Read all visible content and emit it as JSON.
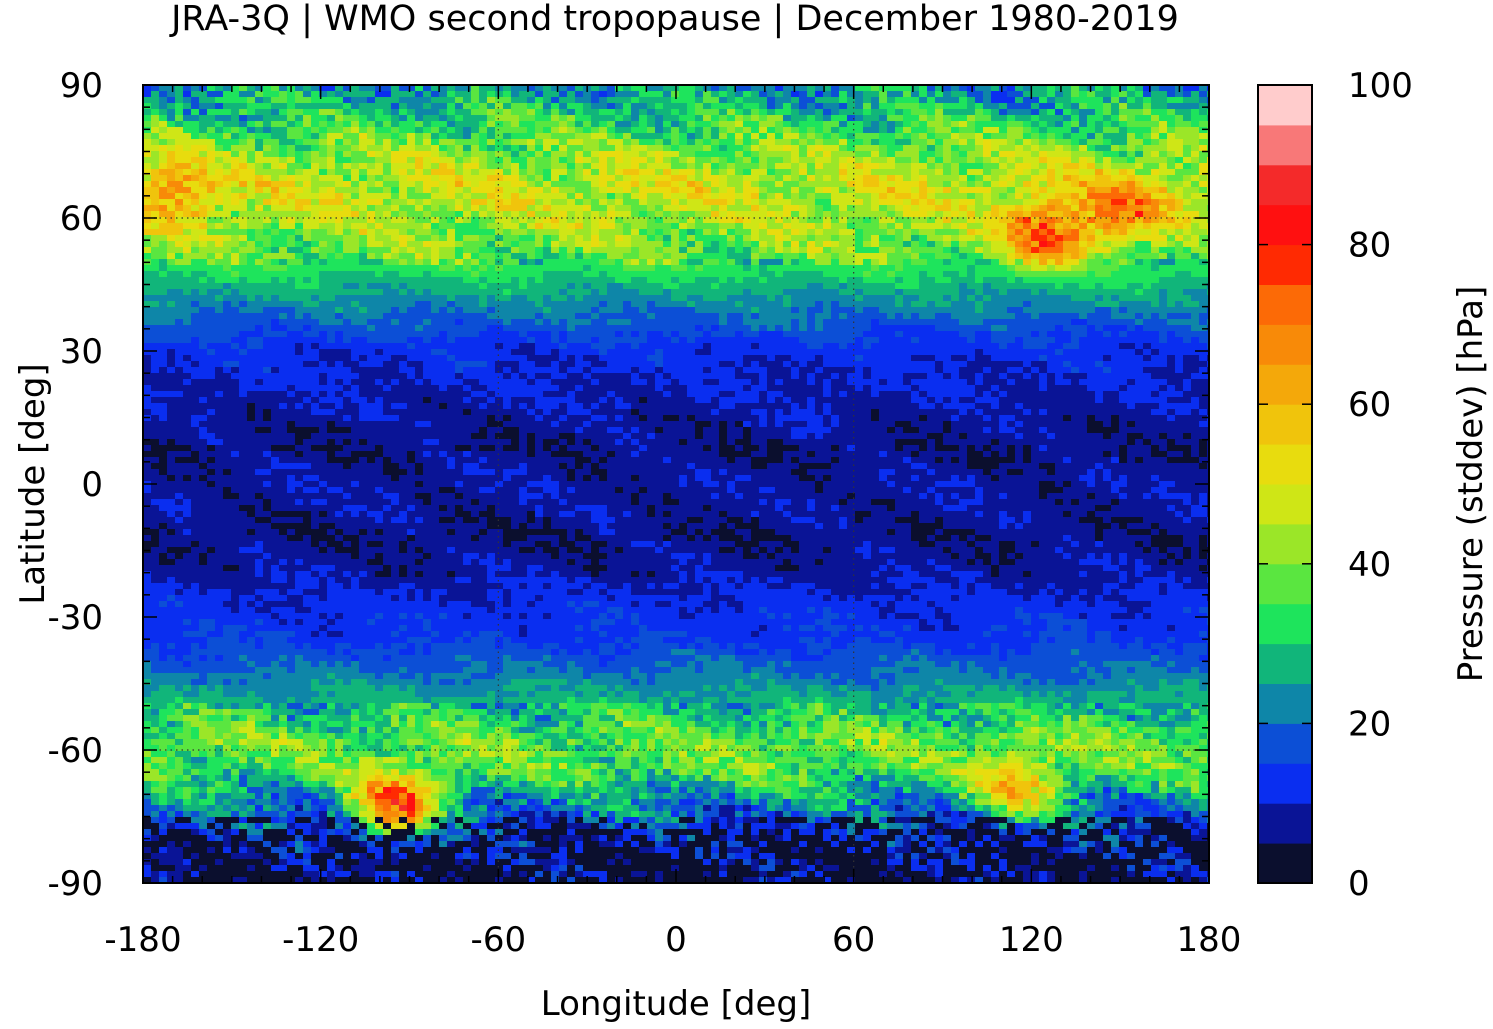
{
  "chart_data": {
    "type": "heatmap",
    "title": "JRA-3Q | WMO second tropopause | December 1980-2019",
    "xlabel": "Longitude [deg]",
    "ylabel": "Latitude [deg]",
    "colorbar_label": "Pressure (stddev) [hPa]",
    "xlim": [
      -180,
      180
    ],
    "ylim": [
      -90,
      90
    ],
    "xticks": [
      "-180",
      "-120",
      "-60",
      "0",
      "60",
      "120",
      "180"
    ],
    "yticks": [
      "90",
      "60",
      "30",
      "0",
      "-30",
      "-60",
      "-90"
    ],
    "x_tick_values": [
      -180,
      -120,
      -60,
      0,
      60,
      120,
      180
    ],
    "y_tick_values": [
      90,
      60,
      30,
      0,
      -30,
      -60,
      -90
    ],
    "gridlines_at": [
      -60,
      60
    ],
    "colorbar": {
      "range": [
        0,
        100
      ],
      "ticks": [
        "100",
        "80",
        "60",
        "40",
        "20",
        "0"
      ],
      "tick_values": [
        100,
        80,
        60,
        40,
        20,
        0
      ],
      "step": 5,
      "colors": [
        "#0b0f2e",
        "#0a1496",
        "#0a2ef0",
        "#0c4fd6",
        "#0e86a8",
        "#11b57a",
        "#1ee45c",
        "#5ae640",
        "#9be628",
        "#cfe616",
        "#e8dc0e",
        "#f0c40c",
        "#f4a80a",
        "#f88a08",
        "#fc6a06",
        "#ff2a02",
        "#ff1010",
        "#f42a2a",
        "#f87878",
        "#ffcccc"
      ]
    },
    "zonal_profile": {
      "latitudes": [
        -88,
        -80,
        -72,
        -65,
        -58,
        -50,
        -42,
        -35,
        -28,
        -20,
        -12,
        -5,
        0,
        8,
        15,
        22,
        30,
        38,
        45,
        52,
        60,
        68,
        76,
        84,
        89
      ],
      "values": [
        5,
        10,
        22,
        35,
        38,
        28,
        20,
        14,
        12,
        8,
        6,
        8,
        8,
        6,
        8,
        10,
        12,
        20,
        28,
        38,
        45,
        48,
        40,
        30,
        24
      ]
    },
    "hotspots": [
      {
        "lon": -170,
        "lat": 66,
        "value": 70
      },
      {
        "lon": 125,
        "lat": 57,
        "value": 82
      },
      {
        "lon": 150,
        "lat": 62,
        "value": 75
      },
      {
        "lon": -95,
        "lat": -72,
        "value": 85
      },
      {
        "lon": 115,
        "lat": -68,
        "value": 65
      }
    ]
  }
}
